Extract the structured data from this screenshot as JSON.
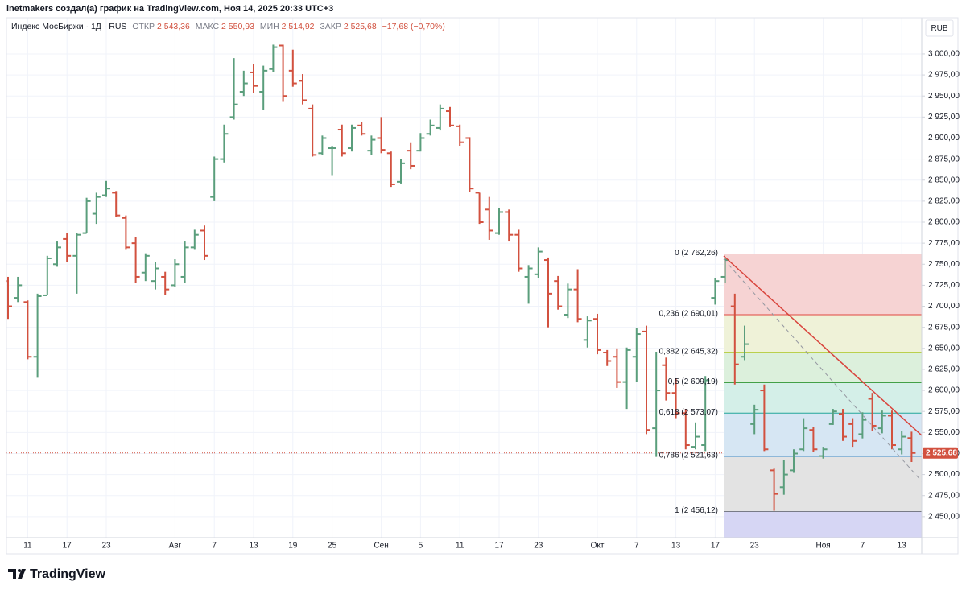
{
  "header": "lnetmakers создал(а) график на TradingView.com, Ноя 14, 2025 20:33 UTC+3",
  "footer": "TradingView",
  "chart_data": {
    "type": "ohlc",
    "title": "Индекс МосБиржи · 1Д · RUS",
    "legend": {
      "items": [
        {
          "key": "ОТКР",
          "value": "2 543,36"
        },
        {
          "key": "МАКС",
          "value": "2 550,93"
        },
        {
          "key": "МИН",
          "value": "2 514,92"
        },
        {
          "key": "ЗАКР",
          "value": "2 525,68"
        }
      ],
      "change": "−17,68 (−0,70%)"
    },
    "currency": "RUB",
    "up_color": "#5a9e7c",
    "down_color": "#d2513f",
    "grid": true,
    "categories": [
      null,
      null,
      "11",
      null,
      null,
      null,
      "17",
      null,
      null,
      null,
      "23",
      null,
      null,
      null,
      null,
      null,
      null,
      "Авг",
      null,
      null,
      null,
      "7",
      null,
      null,
      null,
      "13",
      null,
      null,
      null,
      "19",
      null,
      null,
      null,
      "25",
      null,
      null,
      null,
      null,
      "Сен",
      null,
      null,
      null,
      "5",
      null,
      null,
      null,
      "11",
      null,
      null,
      null,
      "17",
      null,
      null,
      null,
      "23",
      null,
      null,
      null,
      null,
      null,
      "Окт",
      null,
      null,
      null,
      "7",
      null,
      null,
      null,
      "13",
      null,
      null,
      null,
      "17",
      null,
      null,
      null,
      "23",
      null,
      null,
      null,
      null,
      null,
      null,
      "Ноя",
      null,
      null,
      null,
      "7",
      null,
      null,
      null,
      "13",
      null
    ],
    "open": [
      2730,
      2710,
      2705,
      2640,
      2713,
      2750,
      2780,
      2760,
      2787,
      2810,
      2832,
      2835,
      2805,
      2775,
      2740,
      2730,
      2735,
      2725,
      2735,
      2770,
      2790,
      2830,
      2875,
      2925,
      2955,
      2978,
      2955,
      2982,
      3010,
      2980,
      2968,
      2935,
      2882,
      2888,
      2910,
      2888,
      2915,
      2885,
      2900,
      2882,
      2848,
      2885,
      2885,
      2905,
      2912,
      2932,
      2914,
      2900,
      2835,
      2815,
      2787,
      2812,
      2785,
      2735,
      2738,
      2755,
      2730,
      2690,
      2720,
      2660,
      2685,
      2645,
      2640,
      2610,
      2640,
      2670,
      2555,
      2630,
      2597,
      2573,
      2533,
      2535,
      2710,
      2735,
      2700,
      2640,
      2560,
      2600,
      2505,
      2485,
      2505,
      2530,
      2553,
      2522,
      2560,
      2572,
      2560,
      2548,
      2590,
      2555,
      2570,
      2530,
      2543.36
    ],
    "high": [
      2735,
      2735,
      2707,
      2715,
      2760,
      2777,
      2787,
      2787,
      2829,
      2835,
      2849,
      2837,
      2808,
      2782,
      2763,
      2753,
      2741,
      2756,
      2777,
      2791,
      2796,
      2878,
      2916,
      2995,
      2980,
      2988,
      2986,
      3011,
      3011,
      3005,
      2976,
      2940,
      2903,
      2890,
      2916,
      2916,
      2919,
      2903,
      2925,
      2884,
      2875,
      2894,
      2906,
      2922,
      2940,
      2937,
      2916,
      2901,
      2835,
      2830,
      2817,
      2815,
      2791,
      2749,
      2770,
      2758,
      2736,
      2727,
      2744,
      2688,
      2691,
      2648,
      2650,
      2651,
      2674,
      2677,
      2646,
      2639,
      2614,
      2578,
      2562,
      2617,
      2734,
      2758,
      2715,
      2677,
      2583,
      2607,
      2507,
      2517,
      2530,
      2567,
      2557,
      2533,
      2578,
      2578,
      2567,
      2574,
      2597,
      2576,
      2576,
      2552,
      2550.93
    ],
    "low": [
      2685,
      2705,
      2637,
      2615,
      2713,
      2747,
      2753,
      2715,
      2787,
      2798,
      2830,
      2806,
      2768,
      2728,
      2730,
      2720,
      2713,
      2723,
      2728,
      2768,
      2755,
      2825,
      2871,
      2922,
      2950,
      2954,
      2933,
      2978,
      2943,
      2961,
      2940,
      2878,
      2880,
      2855,
      2878,
      2884,
      2903,
      2880,
      2882,
      2842,
      2846,
      2863,
      2884,
      2903,
      2909,
      2913,
      2890,
      2836,
      2798,
      2779,
      2785,
      2777,
      2741,
      2703,
      2734,
      2675,
      2696,
      2686,
      2681,
      2651,
      2643,
      2629,
      2603,
      2578,
      2610,
      2548,
      2521,
      2588,
      2567,
      2530,
      2530,
      2528,
      2702,
      2728,
      2607,
      2636,
      2548,
      2528,
      2457,
      2476,
      2502,
      2528,
      2527,
      2519,
      2559,
      2540,
      2533,
      2543,
      2552,
      2549,
      2530,
      2524,
      2514.92
    ],
    "close": [
      2700,
      2725,
      2640,
      2712,
      2757,
      2770,
      2760,
      2785,
      2825,
      2830,
      2840,
      2808,
      2770,
      2735,
      2760,
      2745,
      2720,
      2750,
      2770,
      2785,
      2760,
      2875,
      2905,
      2940,
      2965,
      2962,
      2980,
      3008,
      2950,
      2965,
      2945,
      2880,
      2900,
      2888,
      2882,
      2912,
      2905,
      2898,
      2886,
      2845,
      2870,
      2867,
      2900,
      2915,
      2935,
      2915,
      2895,
      2840,
      2800,
      2790,
      2812,
      2785,
      2745,
      2745,
      2765,
      2715,
      2700,
      2720,
      2685,
      2683,
      2648,
      2635,
      2610,
      2648,
      2667,
      2553,
      2600,
      2597,
      2573,
      2535,
      2545,
      2612,
      2730,
      2755,
      2631,
      2655,
      2577,
      2530,
      2477,
      2500,
      2525,
      2555,
      2530,
      2530,
      2575,
      2545,
      2540,
      2565,
      2558,
      2570,
      2535,
      2545,
      2525.68
    ],
    "ylim": [
      2425,
      3043
    ],
    "yticks": [
      {
        "value": 2450,
        "label": "2 450,00"
      },
      {
        "value": 2475,
        "label": "2 475,00"
      },
      {
        "value": 2500,
        "label": "2 500,00"
      },
      {
        "value": 2525,
        "label": "2 525,00"
      },
      {
        "value": 2550,
        "label": "2 550,00"
      },
      {
        "value": 2575,
        "label": "2 575,00"
      },
      {
        "value": 2600,
        "label": "2 600,00"
      },
      {
        "value": 2625,
        "label": "2 625,00"
      },
      {
        "value": 2650,
        "label": "2 650,00"
      },
      {
        "value": 2675,
        "label": "2 675,00"
      },
      {
        "value": 2700,
        "label": "2 700,00"
      },
      {
        "value": 2725,
        "label": "2 725,00"
      },
      {
        "value": 2750,
        "label": "2 750,00"
      },
      {
        "value": 2775,
        "label": "2 775,00"
      },
      {
        "value": 2800,
        "label": "2 800,00"
      },
      {
        "value": 2825,
        "label": "2 825,00"
      },
      {
        "value": 2850,
        "label": "2 850,00"
      },
      {
        "value": 2875,
        "label": "2 875,00"
      },
      {
        "value": 2900,
        "label": "2 900,00"
      },
      {
        "value": 2925,
        "label": "2 925,00"
      },
      {
        "value": 2950,
        "label": "2 950,00"
      },
      {
        "value": 2975,
        "label": "2 975,00"
      },
      {
        "value": 3000,
        "label": "3 000,00"
      }
    ],
    "last_price": {
      "value": 2525.68,
      "label": "2 525,68"
    },
    "fib_levels": [
      {
        "value": 2762.26,
        "label": "0 (2 762,26)",
        "color": "#787b86",
        "fill": "#f6d3d3"
      },
      {
        "value": 2690.01,
        "label": "0,236 (2 690,01)",
        "color": "#e0473f",
        "fill": "#eff2d8"
      },
      {
        "value": 2645.32,
        "label": "0,382 (2 645,32)",
        "color": "#a8c41f",
        "fill": "#dcf0dc"
      },
      {
        "value": 2609.19,
        "label": "0,5 (2 609,19)",
        "color": "#43a047",
        "fill": "#d4efe8"
      },
      {
        "value": 2573.07,
        "label": "0,618 (2 573,07)",
        "color": "#22a699",
        "fill": "#d6e6f3"
      },
      {
        "value": 2521.63,
        "label": "0,786 (2 521,63)",
        "color": "#3a8ccf",
        "fill": "#e3e3e3"
      },
      {
        "value": 2456.12,
        "label": "1 (2 456,12)",
        "color": "#787b86",
        "fill": "#d6d6f4"
      }
    ]
  }
}
